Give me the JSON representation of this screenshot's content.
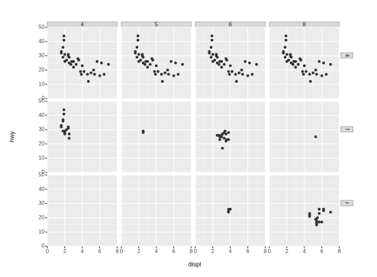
{
  "chart_data": {
    "type": "scatter",
    "xlabel": "displ",
    "ylabel": "hwy",
    "facet_cols": [
      "4",
      "5",
      "6",
      "8"
    ],
    "facet_rows": [
      "4",
      "f",
      "r"
    ],
    "xlim": [
      0,
      8
    ],
    "ylim": [
      0,
      50
    ],
    "xticks": [
      0,
      2,
      4,
      6,
      8
    ],
    "yticks": [
      0,
      10,
      20,
      30,
      40,
      50
    ],
    "grid": true,
    "color": "#333333",
    "panels": [
      [
        {
          "x": [
            1.6,
            1.6,
            1.8,
            1.8,
            1.9,
            1.9,
            2.0,
            2.0,
            2.2,
            2.4,
            2.4,
            2.5,
            2.5,
            2.7,
            2.8,
            3.0,
            3.0,
            3.3,
            3.5,
            3.6,
            3.8,
            3.9,
            4.0,
            4.2,
            4.6,
            4.7,
            5.0,
            5.3,
            5.4,
            5.7,
            6.0,
            6.2,
            6.5,
            7.0
          ],
          "y": [
            33,
            32,
            29,
            36,
            44,
            41,
            31,
            26,
            27,
            30,
            31,
            25,
            29,
            24,
            26,
            22,
            26,
            24,
            28,
            27,
            19,
            17,
            23,
            19,
            17,
            12,
            18,
            20,
            17,
            26,
            16,
            25,
            17,
            24
          ]
        },
        {
          "x": [
            1.6,
            1.6,
            1.8,
            1.8,
            1.9,
            1.9,
            2.0,
            2.0,
            2.2,
            2.4,
            2.4,
            2.5,
            2.5,
            2.7,
            2.8,
            3.0,
            3.0,
            3.3,
            3.5,
            3.6,
            3.8,
            3.9,
            4.0,
            4.2,
            4.6,
            4.7,
            5.0,
            5.3,
            5.4,
            5.7,
            6.0,
            6.2,
            6.5,
            7.0
          ],
          "y": [
            33,
            32,
            29,
            36,
            44,
            41,
            31,
            26,
            27,
            30,
            31,
            25,
            29,
            24,
            26,
            22,
            26,
            24,
            28,
            27,
            19,
            17,
            23,
            19,
            17,
            12,
            18,
            20,
            17,
            26,
            16,
            25,
            17,
            24
          ]
        },
        {
          "x": [
            1.6,
            1.6,
            1.8,
            1.8,
            1.9,
            1.9,
            2.0,
            2.0,
            2.2,
            2.4,
            2.4,
            2.5,
            2.5,
            2.7,
            2.8,
            3.0,
            3.0,
            3.3,
            3.5,
            3.6,
            3.8,
            3.9,
            4.0,
            4.2,
            4.6,
            4.7,
            5.0,
            5.3,
            5.4,
            5.7,
            6.0,
            6.2,
            6.5,
            7.0
          ],
          "y": [
            33,
            32,
            29,
            36,
            44,
            41,
            31,
            26,
            27,
            30,
            31,
            25,
            29,
            24,
            26,
            22,
            26,
            24,
            28,
            27,
            19,
            17,
            23,
            19,
            17,
            12,
            18,
            20,
            17,
            26,
            16,
            25,
            17,
            24
          ]
        },
        {
          "x": [
            1.6,
            1.6,
            1.8,
            1.8,
            1.9,
            1.9,
            2.0,
            2.0,
            2.2,
            2.4,
            2.4,
            2.5,
            2.5,
            2.7,
            2.8,
            3.0,
            3.0,
            3.3,
            3.5,
            3.6,
            3.8,
            3.9,
            4.0,
            4.2,
            4.6,
            4.7,
            5.0,
            5.3,
            5.4,
            5.7,
            6.0,
            6.2,
            6.5,
            7.0
          ],
          "y": [
            33,
            32,
            29,
            36,
            44,
            41,
            31,
            26,
            27,
            30,
            31,
            25,
            29,
            24,
            26,
            22,
            26,
            24,
            28,
            27,
            19,
            17,
            23,
            19,
            17,
            12,
            18,
            20,
            17,
            26,
            16,
            25,
            17,
            24
          ]
        }
      ],
      [
        {
          "x": [
            1.6,
            1.6,
            1.8,
            1.8,
            1.8,
            1.9,
            1.9,
            2.0,
            2.0,
            2.2,
            2.4,
            2.4,
            2.5,
            2.5,
            2.0
          ],
          "y": [
            33,
            32,
            29,
            36,
            37,
            44,
            41,
            29,
            28,
            30,
            32,
            31,
            27,
            24,
            27
          ]
        },
        {
          "x": [
            2.5,
            2.5
          ],
          "y": [
            28,
            29
          ]
        },
        {
          "x": [
            2.5,
            2.7,
            2.8,
            3.0,
            3.1,
            3.3,
            3.3,
            3.4,
            3.5,
            3.5,
            3.6,
            3.8,
            3.8,
            3.1,
            2.8,
            3.0
          ],
          "y": [
            26,
            26,
            25,
            26,
            27,
            28,
            24,
            29,
            27,
            22,
            23,
            28,
            23,
            17,
            23,
            25
          ]
        },
        {
          "x": [
            5.3
          ],
          "y": [
            25
          ]
        }
      ],
      [
        {
          "x": [],
          "y": []
        },
        {
          "x": [],
          "y": []
        },
        {
          "x": [
            3.8,
            3.8,
            4.0,
            3.8
          ],
          "y": [
            26,
            25,
            26,
            24
          ]
        },
        {
          "x": [
            4.6,
            4.6,
            4.6,
            5.4,
            5.4,
            5.4,
            5.4,
            5.7,
            5.7,
            6.0,
            6.2,
            6.2,
            7.0,
            5.5,
            5.7,
            5.3
          ],
          "y": [
            23,
            22,
            21,
            18,
            17,
            15,
            16,
            17,
            26,
            17,
            26,
            25,
            24,
            20,
            23,
            19
          ]
        }
      ]
    ]
  }
}
